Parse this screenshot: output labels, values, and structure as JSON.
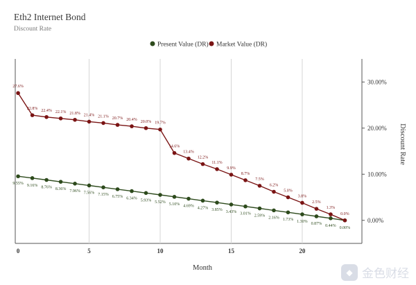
{
  "title": "Eth2 Internet Bond",
  "subtitle": "Discount Rate",
  "watermark": {
    "text": "金色财经",
    "icon": "golden-finance-logo"
  },
  "chart_data": {
    "type": "line",
    "xlabel": "Month",
    "ylabel": "Discount Rate",
    "x_ticks": [
      0,
      5,
      10,
      15,
      20
    ],
    "y_ticks": [
      "0.00%",
      "10.00%",
      "20.00%",
      "30.00%"
    ],
    "y_tick_values": [
      0,
      10,
      20,
      30
    ],
    "xlim": [
      -0.2,
      24.2
    ],
    "ylim": [
      -5,
      35
    ],
    "legend_position": "top-center",
    "grid": "vertical",
    "x": [
      0,
      1,
      2,
      3,
      4,
      5,
      6,
      7,
      8,
      9,
      10,
      11,
      12,
      13,
      14,
      15,
      16,
      17,
      18,
      19,
      20,
      21,
      22,
      23
    ],
    "series": [
      {
        "name": "Present Value (DR)",
        "color": "#2d4a1c",
        "values": [
          9.55,
          9.16,
          8.76,
          8.36,
          7.96,
          7.56,
          7.15,
          6.75,
          6.34,
          5.93,
          5.52,
          5.1,
          4.69,
          4.27,
          3.85,
          3.43,
          3.01,
          2.59,
          2.16,
          1.73,
          1.3,
          0.87,
          0.44,
          0.0
        ],
        "labels": [
          "9.55%",
          "9.16%",
          "8.76%",
          "8.36%",
          "7.96%",
          "7.56%",
          "7.15%",
          "6.75%",
          "6.34%",
          "5.93%",
          "5.52%",
          "5.10%",
          "4.69%",
          "4.27%",
          "3.85%",
          "3.43%",
          "3.01%",
          "2.59%",
          "2.16%",
          "1.73%",
          "1.30%",
          "0.87%",
          "0.44%",
          "0.00%"
        ]
      },
      {
        "name": "Market Value (DR)",
        "color": "#7a1414",
        "values": [
          27.6,
          22.8,
          22.4,
          22.1,
          21.8,
          21.4,
          21.1,
          20.7,
          20.4,
          20.0,
          19.7,
          14.6,
          13.4,
          12.2,
          11.1,
          9.9,
          8.7,
          7.5,
          6.2,
          5.0,
          3.8,
          2.5,
          1.3,
          0.0
        ],
        "labels": [
          "27.6%",
          "22.8%",
          "22.4%",
          "22.1%",
          "21.8%",
          "21.4%",
          "21.1%",
          "20.7%",
          "20.4%",
          "20.0%",
          "19.7%",
          "14.6%",
          "13.4%",
          "12.2%",
          "11.1%",
          "9.9%",
          "8.7%",
          "7.5%",
          "6.2%",
          "5.0%",
          "3.8%",
          "2.5%",
          "1.3%",
          "0.0%"
        ]
      }
    ]
  }
}
